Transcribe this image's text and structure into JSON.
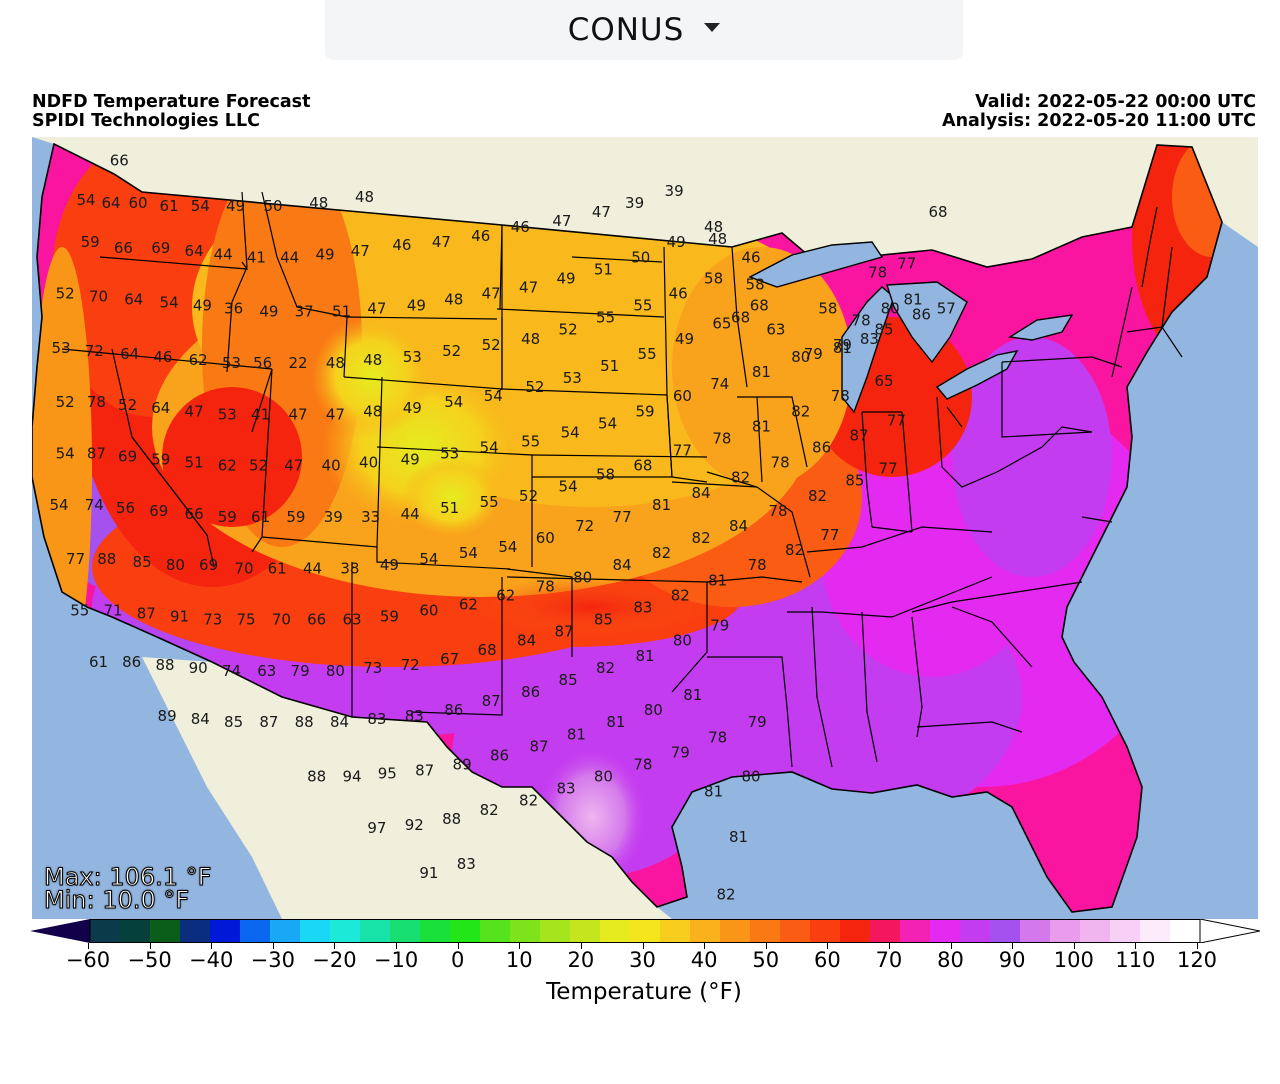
{
  "region_selector": {
    "label": "CONUS"
  },
  "header": {
    "title": "NDFD Temperature Forecast",
    "org": "SPIDI Technologies LLC",
    "valid": "Valid: 2022-05-22 00:00 UTC",
    "analysis": "Analysis: 2022-05-20 11:00 UTC"
  },
  "stats": {
    "max": "Max: 106.1 °F",
    "min": "Min: 10.0 °F"
  },
  "colorbar": {
    "title": "Temperature (°F)",
    "ticks": [
      "−60",
      "−50",
      "−40",
      "−30",
      "−20",
      "−10",
      "0",
      "10",
      "20",
      "30",
      "40",
      "50",
      "60",
      "70",
      "80",
      "90",
      "100",
      "110",
      "120"
    ],
    "colors": [
      "#0b3b4b",
      "#06403a",
      "#0b5e1a",
      "#0a2d80",
      "#0018d8",
      "#0b66f0",
      "#19a8f4",
      "#18d8f5",
      "#1de9d8",
      "#17e3a8",
      "#16de70",
      "#19e03a",
      "#22e617",
      "#56e21c",
      "#7fe31b",
      "#a6e51e",
      "#c5e61e",
      "#e6eb1f",
      "#f5e51f",
      "#f9cd1d",
      "#f9b21b",
      "#f99517",
      "#f97a14",
      "#f95c12",
      "#f93e10",
      "#f5240e",
      "#f51660",
      "#f322b4",
      "#e429f0",
      "#c43cf0",
      "#a451f0",
      "#d479ec",
      "#ea9cec",
      "#f0b5ef",
      "#f8cff6",
      "#fcebfb",
      "#ffffff"
    ],
    "arrow_low_color": "#12004a"
  },
  "map_colors": {
    "ocean": "#93b6e0",
    "land": "#efefdc",
    "lakes": "#93b6e0"
  },
  "temperature_labels": [
    {
      "v": "66",
      "lon": -122.4,
      "lat": 49.0
    },
    {
      "v": "54",
      "lon": -124.0,
      "lat": 47.7
    },
    {
      "v": "64",
      "lon": -122.8,
      "lat": 47.6
    },
    {
      "v": "60",
      "lon": -121.5,
      "lat": 47.6
    },
    {
      "v": "61",
      "lon": -120.0,
      "lat": 47.5
    },
    {
      "v": "54",
      "lon": -118.5,
      "lat": 47.5
    },
    {
      "v": "49",
      "lon": -116.8,
      "lat": 47.5
    },
    {
      "v": "50",
      "lon": -115.0,
      "lat": 47.5
    },
    {
      "v": "48",
      "lon": -112.8,
      "lat": 47.6
    },
    {
      "v": "48",
      "lon": -110.6,
      "lat": 47.8
    },
    {
      "v": "59",
      "lon": -123.8,
      "lat": 46.3
    },
    {
      "v": "66",
      "lon": -122.2,
      "lat": 46.1
    },
    {
      "v": "69",
      "lon": -120.4,
      "lat": 46.1
    },
    {
      "v": "64",
      "lon": -118.8,
      "lat": 46.0
    },
    {
      "v": "44",
      "lon": -117.4,
      "lat": 45.9
    },
    {
      "v": "41",
      "lon": -115.8,
      "lat": 45.8
    },
    {
      "v": "44",
      "lon": -114.2,
      "lat": 45.8
    },
    {
      "v": "49",
      "lon": -112.5,
      "lat": 45.9
    },
    {
      "v": "47",
      "lon": -110.8,
      "lat": 46.0
    },
    {
      "v": "46",
      "lon": -108.8,
      "lat": 46.2
    },
    {
      "v": "47",
      "lon": -106.9,
      "lat": 46.3
    },
    {
      "v": "46",
      "lon": -105.0,
      "lat": 46.5
    },
    {
      "v": "46",
      "lon": -103.1,
      "lat": 46.8
    },
    {
      "v": "47",
      "lon": -101.1,
      "lat": 47.0
    },
    {
      "v": "47",
      "lon": -99.2,
      "lat": 47.3
    },
    {
      "v": "39",
      "lon": -97.6,
      "lat": 47.6
    },
    {
      "v": "39",
      "lon": -95.7,
      "lat": 48.0
    },
    {
      "v": "52",
      "lon": -125.0,
      "lat": 44.6
    },
    {
      "v": "70",
      "lon": -123.4,
      "lat": 44.5
    },
    {
      "v": "64",
      "lon": -121.7,
      "lat": 44.4
    },
    {
      "v": "54",
      "lon": -120.0,
      "lat": 44.3
    },
    {
      "v": "49",
      "lon": -118.4,
      "lat": 44.2
    },
    {
      "v": "36",
      "lon": -116.9,
      "lat": 44.1
    },
    {
      "v": "49",
      "lon": -115.2,
      "lat": 44.0
    },
    {
      "v": "37",
      "lon": -113.5,
      "lat": 44.0
    },
    {
      "v": "51",
      "lon": -111.7,
      "lat": 44.0
    },
    {
      "v": "47",
      "lon": -110.0,
      "lat": 44.1
    },
    {
      "v": "49",
      "lon": -108.1,
      "lat": 44.2
    },
    {
      "v": "48",
      "lon": -106.3,
      "lat": 44.4
    },
    {
      "v": "47",
      "lon": -104.5,
      "lat": 44.6
    },
    {
      "v": "47",
      "lon": -102.7,
      "lat": 44.8
    },
    {
      "v": "49",
      "lon": -100.9,
      "lat": 45.1
    },
    {
      "v": "51",
      "lon": -99.1,
      "lat": 45.4
    },
    {
      "v": "50",
      "lon": -97.3,
      "lat": 45.8
    },
    {
      "v": "49",
      "lon": -95.6,
      "lat": 46.3
    },
    {
      "v": "48",
      "lon": -93.8,
      "lat": 46.8
    },
    {
      "v": "53",
      "lon": -125.2,
      "lat": 42.8
    },
    {
      "v": "72",
      "lon": -123.6,
      "lat": 42.7
    },
    {
      "v": "64",
      "lon": -121.9,
      "lat": 42.6
    },
    {
      "v": "46",
      "lon": -120.3,
      "lat": 42.5
    },
    {
      "v": "62",
      "lon": -118.6,
      "lat": 42.4
    },
    {
      "v": "53",
      "lon": -117.0,
      "lat": 42.3
    },
    {
      "v": "56",
      "lon": -115.5,
      "lat": 42.3
    },
    {
      "v": "22",
      "lon": -113.8,
      "lat": 42.3
    },
    {
      "v": "48",
      "lon": -112.0,
      "lat": 42.3
    },
    {
      "v": "48",
      "lon": -110.2,
      "lat": 42.4
    },
    {
      "v": "53",
      "lon": -108.3,
      "lat": 42.5
    },
    {
      "v": "52",
      "lon": -106.4,
      "lat": 42.7
    },
    {
      "v": "52",
      "lon": -104.5,
      "lat": 42.9
    },
    {
      "v": "48",
      "lon": -102.6,
      "lat": 43.1
    },
    {
      "v": "52",
      "lon": -100.8,
      "lat": 43.4
    },
    {
      "v": "55",
      "lon": -99.0,
      "lat": 43.8
    },
    {
      "v": "55",
      "lon": -97.2,
      "lat": 44.2
    },
    {
      "v": "46",
      "lon": -95.5,
      "lat": 44.6
    },
    {
      "v": "58",
      "lon": -93.8,
      "lat": 45.1
    },
    {
      "v": "46",
      "lon": -92.0,
      "lat": 45.8
    },
    {
      "v": "52",
      "lon": -125.0,
      "lat": 41.0
    },
    {
      "v": "78",
      "lon": -123.5,
      "lat": 41.0
    },
    {
      "v": "52",
      "lon": -122.0,
      "lat": 40.9
    },
    {
      "v": "64",
      "lon": -120.4,
      "lat": 40.8
    },
    {
      "v": "47",
      "lon": -118.8,
      "lat": 40.7
    },
    {
      "v": "53",
      "lon": -117.2,
      "lat": 40.6
    },
    {
      "v": "41",
      "lon": -115.6,
      "lat": 40.6
    },
    {
      "v": "47",
      "lon": -113.8,
      "lat": 40.6
    },
    {
      "v": "47",
      "lon": -112.0,
      "lat": 40.6
    },
    {
      "v": "48",
      "lon": -110.2,
      "lat": 40.7
    },
    {
      "v": "49",
      "lon": -108.3,
      "lat": 40.8
    },
    {
      "v": "54",
      "lon": -106.3,
      "lat": 41.0
    },
    {
      "v": "54",
      "lon": -104.4,
      "lat": 41.2
    },
    {
      "v": "52",
      "lon": -102.4,
      "lat": 41.5
    },
    {
      "v": "53",
      "lon": -100.6,
      "lat": 41.8
    },
    {
      "v": "51",
      "lon": -98.8,
      "lat": 42.2
    },
    {
      "v": "55",
      "lon": -97.0,
      "lat": 42.6
    },
    {
      "v": "49",
      "lon": -95.2,
      "lat": 43.1
    },
    {
      "v": "65",
      "lon": -93.4,
      "lat": 43.6
    },
    {
      "v": "68",
      "lon": -91.6,
      "lat": 44.2
    },
    {
      "v": "54",
      "lon": -125.0,
      "lat": 39.3
    },
    {
      "v": "87",
      "lon": -123.5,
      "lat": 39.3
    },
    {
      "v": "69",
      "lon": -122.0,
      "lat": 39.2
    },
    {
      "v": "59",
      "lon": -120.4,
      "lat": 39.1
    },
    {
      "v": "51",
      "lon": -118.8,
      "lat": 39.0
    },
    {
      "v": "62",
      "lon": -117.2,
      "lat": 38.9
    },
    {
      "v": "52",
      "lon": -115.7,
      "lat": 38.9
    },
    {
      "v": "47",
      "lon": -114.0,
      "lat": 38.9
    },
    {
      "v": "40",
      "lon": -112.2,
      "lat": 38.9
    },
    {
      "v": "40",
      "lon": -110.4,
      "lat": 39.0
    },
    {
      "v": "49",
      "lon": -108.4,
      "lat": 39.1
    },
    {
      "v": "53",
      "lon": -106.5,
      "lat": 39.3
    },
    {
      "v": "54",
      "lon": -104.6,
      "lat": 39.5
    },
    {
      "v": "55",
      "lon": -102.6,
      "lat": 39.7
    },
    {
      "v": "54",
      "lon": -100.7,
      "lat": 40.0
    },
    {
      "v": "54",
      "lon": -98.9,
      "lat": 40.3
    },
    {
      "v": "59",
      "lon": -97.1,
      "lat": 40.7
    },
    {
      "v": "60",
      "lon": -95.3,
      "lat": 41.2
    },
    {
      "v": "74",
      "lon": -93.5,
      "lat": 41.6
    },
    {
      "v": "81",
      "lon": -91.5,
      "lat": 42.0
    },
    {
      "v": "80",
      "lon": -89.6,
      "lat": 42.5
    },
    {
      "v": "79",
      "lon": -87.6,
      "lat": 42.9
    },
    {
      "v": "85",
      "lon": -85.6,
      "lat": 43.4
    },
    {
      "v": "86",
      "lon": -83.8,
      "lat": 43.9
    },
    {
      "v": "54",
      "lon": -125.3,
      "lat": 37.6
    },
    {
      "v": "74",
      "lon": -123.6,
      "lat": 37.6
    },
    {
      "v": "56",
      "lon": -122.1,
      "lat": 37.5
    },
    {
      "v": "69",
      "lon": -120.5,
      "lat": 37.4
    },
    {
      "v": "66",
      "lon": -118.8,
      "lat": 37.3
    },
    {
      "v": "59",
      "lon": -117.2,
      "lat": 37.2
    },
    {
      "v": "61",
      "lon": -115.6,
      "lat": 37.2
    },
    {
      "v": "59",
      "lon": -113.9,
      "lat": 37.2
    },
    {
      "v": "39",
      "lon": -112.1,
      "lat": 37.2
    },
    {
      "v": "33",
      "lon": -110.3,
      "lat": 37.2
    },
    {
      "v": "44",
      "lon": -108.4,
      "lat": 37.3
    },
    {
      "v": "51",
      "lon": -106.5,
      "lat": 37.5
    },
    {
      "v": "55",
      "lon": -104.6,
      "lat": 37.7
    },
    {
      "v": "52",
      "lon": -102.7,
      "lat": 37.9
    },
    {
      "v": "54",
      "lon": -100.8,
      "lat": 38.2
    },
    {
      "v": "58",
      "lon": -99.0,
      "lat": 38.6
    },
    {
      "v": "68",
      "lon": -97.2,
      "lat": 38.9
    },
    {
      "v": "77",
      "lon": -95.3,
      "lat": 39.4
    },
    {
      "v": "78",
      "lon": -93.4,
      "lat": 39.8
    },
    {
      "v": "81",
      "lon": -91.5,
      "lat": 40.2
    },
    {
      "v": "82",
      "lon": -89.6,
      "lat": 40.7
    },
    {
      "v": "78",
      "lon": -87.7,
      "lat": 41.2
    },
    {
      "v": "65",
      "lon": -85.6,
      "lat": 41.7
    },
    {
      "v": "77",
      "lon": -124.5,
      "lat": 35.8
    },
    {
      "v": "88",
      "lon": -123.0,
      "lat": 35.8
    },
    {
      "v": "85",
      "lon": -121.3,
      "lat": 35.7
    },
    {
      "v": "80",
      "lon": -119.7,
      "lat": 35.6
    },
    {
      "v": "69",
      "lon": -118.1,
      "lat": 35.6
    },
    {
      "v": "70",
      "lon": -116.4,
      "lat": 35.5
    },
    {
      "v": "61",
      "lon": -114.8,
      "lat": 35.5
    },
    {
      "v": "44",
      "lon": -113.1,
      "lat": 35.5
    },
    {
      "v": "38",
      "lon": -111.3,
      "lat": 35.5
    },
    {
      "v": "49",
      "lon": -109.4,
      "lat": 35.6
    },
    {
      "v": "54",
      "lon": -107.5,
      "lat": 35.8
    },
    {
      "v": "54",
      "lon": -105.6,
      "lat": 36.0
    },
    {
      "v": "54",
      "lon": -103.7,
      "lat": 36.2
    },
    {
      "v": "60",
      "lon": -101.9,
      "lat": 36.5
    },
    {
      "v": "72",
      "lon": -100.0,
      "lat": 36.9
    },
    {
      "v": "77",
      "lon": -98.2,
      "lat": 37.2
    },
    {
      "v": "81",
      "lon": -96.3,
      "lat": 37.6
    },
    {
      "v": "84",
      "lon": -94.4,
      "lat": 38.0
    },
    {
      "v": "82",
      "lon": -92.5,
      "lat": 38.5
    },
    {
      "v": "78",
      "lon": -90.6,
      "lat": 39.0
    },
    {
      "v": "86",
      "lon": -88.6,
      "lat": 39.5
    },
    {
      "v": "87",
      "lon": -86.8,
      "lat": 39.9
    },
    {
      "v": "77",
      "lon": -85.0,
      "lat": 40.4
    },
    {
      "v": "55",
      "lon": -124.3,
      "lat": 34.1
    },
    {
      "v": "71",
      "lon": -122.7,
      "lat": 34.1
    },
    {
      "v": "87",
      "lon": -121.1,
      "lat": 34.0
    },
    {
      "v": "91",
      "lon": -119.5,
      "lat": 33.9
    },
    {
      "v": "73",
      "lon": -117.9,
      "lat": 33.8
    },
    {
      "v": "75",
      "lon": -116.3,
      "lat": 33.8
    },
    {
      "v": "70",
      "lon": -114.6,
      "lat": 33.8
    },
    {
      "v": "66",
      "lon": -112.9,
      "lat": 33.8
    },
    {
      "v": "63",
      "lon": -111.2,
      "lat": 33.8
    },
    {
      "v": "59",
      "lon": -109.4,
      "lat": 33.9
    },
    {
      "v": "60",
      "lon": -107.5,
      "lat": 34.1
    },
    {
      "v": "62",
      "lon": -105.6,
      "lat": 34.3
    },
    {
      "v": "62",
      "lon": -103.8,
      "lat": 34.6
    },
    {
      "v": "78",
      "lon": -101.9,
      "lat": 34.9
    },
    {
      "v": "80",
      "lon": -100.1,
      "lat": 35.2
    },
    {
      "v": "84",
      "lon": -98.2,
      "lat": 35.6
    },
    {
      "v": "82",
      "lon": -96.3,
      "lat": 36.0
    },
    {
      "v": "82",
      "lon": -94.4,
      "lat": 36.5
    },
    {
      "v": "84",
      "lon": -92.6,
      "lat": 36.9
    },
    {
      "v": "78",
      "lon": -90.7,
      "lat": 37.4
    },
    {
      "v": "82",
      "lon": -88.8,
      "lat": 37.9
    },
    {
      "v": "85",
      "lon": -87.0,
      "lat": 38.4
    },
    {
      "v": "77",
      "lon": -85.4,
      "lat": 38.8
    },
    {
      "v": "61",
      "lon": -123.4,
      "lat": 32.4
    },
    {
      "v": "86",
      "lon": -121.8,
      "lat": 32.4
    },
    {
      "v": "88",
      "lon": -120.2,
      "lat": 32.3
    },
    {
      "v": "90",
      "lon": -118.6,
      "lat": 32.2
    },
    {
      "v": "74",
      "lon": -117.0,
      "lat": 32.1
    },
    {
      "v": "63",
      "lon": -115.3,
      "lat": 32.1
    },
    {
      "v": "79",
      "lon": -113.7,
      "lat": 32.1
    },
    {
      "v": "80",
      "lon": -112.0,
      "lat": 32.1
    },
    {
      "v": "73",
      "lon": -110.2,
      "lat": 32.2
    },
    {
      "v": "72",
      "lon": -108.4,
      "lat": 32.3
    },
    {
      "v": "67",
      "lon": -106.5,
      "lat": 32.5
    },
    {
      "v": "68",
      "lon": -104.7,
      "lat": 32.8
    },
    {
      "v": "84",
      "lon": -102.8,
      "lat": 33.1
    },
    {
      "v": "87",
      "lon": -101.0,
      "lat": 33.4
    },
    {
      "v": "85",
      "lon": -99.1,
      "lat": 33.8
    },
    {
      "v": "83",
      "lon": -97.2,
      "lat": 34.2
    },
    {
      "v": "82",
      "lon": -95.4,
      "lat": 34.6
    },
    {
      "v": "81",
      "lon": -93.6,
      "lat": 35.1
    },
    {
      "v": "78",
      "lon": -91.7,
      "lat": 35.6
    },
    {
      "v": "82",
      "lon": -89.9,
      "lat": 36.1
    },
    {
      "v": "77",
      "lon": -88.2,
      "lat": 36.6
    },
    {
      "v": "89",
      "lon": -120.1,
      "lat": 30.6
    },
    {
      "v": "84",
      "lon": -118.5,
      "lat": 30.5
    },
    {
      "v": "85",
      "lon": -116.9,
      "lat": 30.4
    },
    {
      "v": "87",
      "lon": -115.2,
      "lat": 30.4
    },
    {
      "v": "88",
      "lon": -113.5,
      "lat": 30.4
    },
    {
      "v": "84",
      "lon": -111.8,
      "lat": 30.4
    },
    {
      "v": "83",
      "lon": -110.0,
      "lat": 30.5
    },
    {
      "v": "83",
      "lon": -108.2,
      "lat": 30.6
    },
    {
      "v": "86",
      "lon": -106.3,
      "lat": 30.8
    },
    {
      "v": "87",
      "lon": -104.5,
      "lat": 31.1
    },
    {
      "v": "86",
      "lon": -102.6,
      "lat": 31.4
    },
    {
      "v": "85",
      "lon": -100.8,
      "lat": 31.8
    },
    {
      "v": "82",
      "lon": -99.0,
      "lat": 32.2
    },
    {
      "v": "81",
      "lon": -97.1,
      "lat": 32.6
    },
    {
      "v": "80",
      "lon": -95.3,
      "lat": 33.1
    },
    {
      "v": "79",
      "lon": -93.5,
      "lat": 33.6
    },
    {
      "v": "88",
      "lon": -112.9,
      "lat": 28.6
    },
    {
      "v": "94",
      "lon": -111.2,
      "lat": 28.6
    },
    {
      "v": "95",
      "lon": -109.5,
      "lat": 28.7
    },
    {
      "v": "87",
      "lon": -107.7,
      "lat": 28.8
    },
    {
      "v": "89",
      "lon": -105.9,
      "lat": 29.0
    },
    {
      "v": "86",
      "lon": -104.1,
      "lat": 29.3
    },
    {
      "v": "87",
      "lon": -102.2,
      "lat": 29.6
    },
    {
      "v": "81",
      "lon": -100.4,
      "lat": 30.0
    },
    {
      "v": "81",
      "lon": -98.5,
      "lat": 30.4
    },
    {
      "v": "80",
      "lon": -96.7,
      "lat": 30.8
    },
    {
      "v": "81",
      "lon": -94.8,
      "lat": 31.3
    },
    {
      "v": "97",
      "lon": -110.0,
      "lat": 26.9
    },
    {
      "v": "92",
      "lon": -108.2,
      "lat": 27.0
    },
    {
      "v": "88",
      "lon": -106.4,
      "lat": 27.2
    },
    {
      "v": "82",
      "lon": -104.6,
      "lat": 27.5
    },
    {
      "v": "82",
      "lon": -102.7,
      "lat": 27.8
    },
    {
      "v": "83",
      "lon": -100.9,
      "lat": 28.2
    },
    {
      "v": "80",
      "lon": -99.1,
      "lat": 28.6
    },
    {
      "v": "78",
      "lon": -97.2,
      "lat": 29.0
    },
    {
      "v": "79",
      "lon": -95.4,
      "lat": 29.4
    },
    {
      "v": "78",
      "lon": -93.6,
      "lat": 29.9
    },
    {
      "v": "79",
      "lon": -91.7,
      "lat": 30.4
    },
    {
      "v": "91",
      "lon": -107.5,
      "lat": 25.4
    },
    {
      "v": "83",
      "lon": -105.7,
      "lat": 25.7
    },
    {
      "v": "81",
      "lon": -93.8,
      "lat": 28.1
    },
    {
      "v": "80",
      "lon": -92.0,
      "lat": 28.6
    },
    {
      "v": "81",
      "lon": -92.6,
      "lat": 26.6
    },
    {
      "v": "82",
      "lon": -93.2,
      "lat": 24.7
    },
    {
      "v": "68",
      "lon": -83.0,
      "lat": 47.3
    },
    {
      "v": "77",
      "lon": -84.5,
      "lat": 45.6
    },
    {
      "v": "78",
      "lon": -85.9,
      "lat": 45.3
    },
    {
      "v": "80",
      "lon": -85.3,
      "lat": 44.1
    },
    {
      "v": "81",
      "lon": -84.2,
      "lat": 44.4
    },
    {
      "v": "78",
      "lon": -86.7,
      "lat": 43.7
    },
    {
      "v": "57",
      "lon": -82.6,
      "lat": 44.1
    },
    {
      "v": "79",
      "lon": -89.0,
      "lat": 42.6
    },
    {
      "v": "81",
      "lon": -87.6,
      "lat": 42.8
    },
    {
      "v": "83",
      "lon": -86.3,
      "lat": 43.1
    },
    {
      "v": "58",
      "lon": -88.3,
      "lat": 44.1
    },
    {
      "v": "63",
      "lon": -90.8,
      "lat": 43.4
    },
    {
      "v": "68",
      "lon": -92.5,
      "lat": 43.8
    },
    {
      "v": "58",
      "lon": -91.8,
      "lat": 44.9
    },
    {
      "v": "48",
      "lon": -93.6,
      "lat": 46.4
    }
  ]
}
